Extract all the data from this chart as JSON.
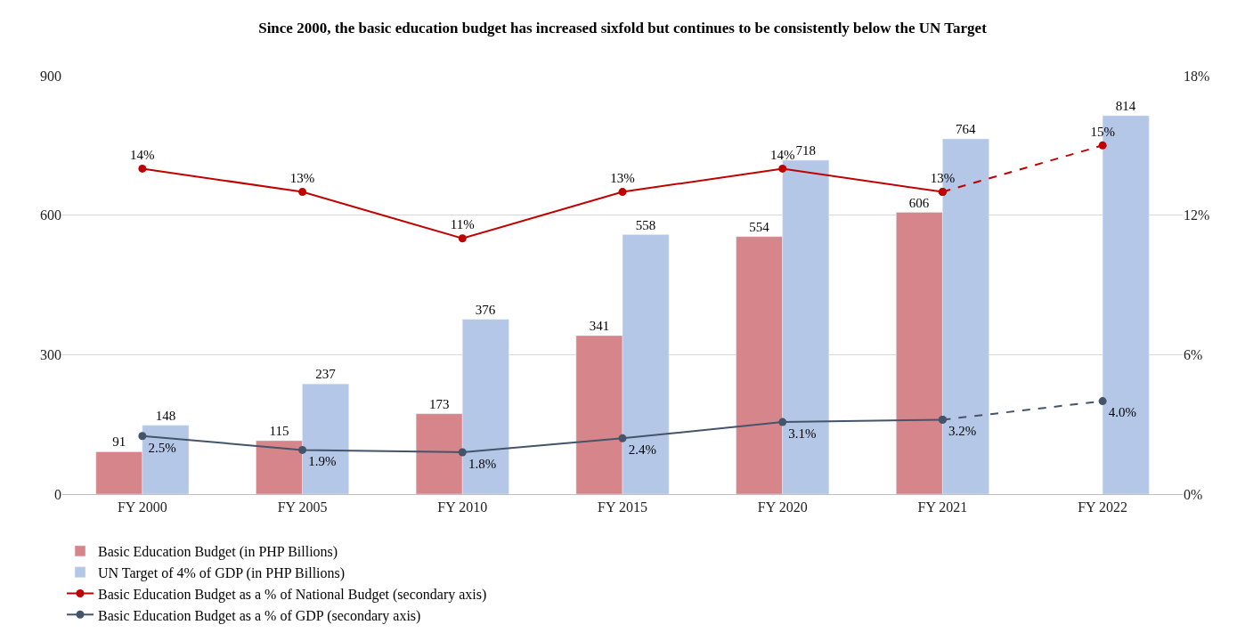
{
  "chart_data": {
    "type": "bar",
    "title": "Since 2000, the basic education budget has increased sixfold but continues to be consistently below the UN Target",
    "categories": [
      "FY 2000",
      "FY 2005",
      "FY 2010",
      "FY 2015",
      "FY 2020",
      "FY 2021",
      "FY 2022"
    ],
    "series": [
      {
        "name": "Basic Education Budget (in PHP Billions)",
        "color": "#d6868b",
        "values": [
          91,
          115,
          173,
          341,
          554,
          606,
          null
        ],
        "value_labels": [
          "91",
          "115",
          "173",
          "341",
          "554",
          "606",
          null
        ]
      },
      {
        "name": "UN Target of 4% of GDP (in PHP Billions)",
        "color": "#b4c7e7",
        "values": [
          148,
          237,
          376,
          558,
          718,
          764,
          814
        ],
        "value_labels": [
          "148",
          "237",
          "376",
          "558",
          "718",
          "764",
          "814"
        ]
      },
      {
        "name": "Basic Education Budget as a % of National Budget (secondary axis)",
        "type": "line",
        "axis": "y2",
        "color": "#c00000",
        "line_style": "solid",
        "marker": "circle",
        "values": [
          14,
          13,
          11,
          13,
          14,
          13,
          null
        ],
        "value_labels": [
          "14%",
          "13%",
          "11%",
          "13%",
          "14%",
          "13%",
          null
        ]
      },
      {
        "type": "line",
        "axis": "y2",
        "color": "#c00000",
        "line_style": "dashed",
        "marker": "circle",
        "values": [
          null,
          null,
          null,
          null,
          null,
          13,
          15
        ],
        "value_labels": [
          null,
          null,
          null,
          null,
          null,
          null,
          "15%"
        ]
      },
      {
        "name": "Basic Education Budget as a % of GDP (secondary axis)",
        "type": "line",
        "axis": "y2",
        "color": "#44546a",
        "line_style": "solid",
        "marker": "circle",
        "values": [
          2.5,
          1.9,
          1.8,
          2.4,
          3.1,
          3.2,
          null
        ],
        "value_labels": [
          "2.5%",
          "1.9%",
          "1.8%",
          "2.4%",
          "3.1%",
          "3.2%",
          null
        ]
      },
      {
        "type": "line",
        "axis": "y2",
        "color": "#44546a",
        "line_style": "dashed",
        "marker": "circle",
        "values": [
          null,
          null,
          null,
          null,
          null,
          3.2,
          4.0
        ],
        "value_labels": [
          null,
          null,
          null,
          null,
          null,
          null,
          "4.0%"
        ]
      }
    ],
    "ylim": [
      0,
      900
    ],
    "yticks": [
      0,
      300,
      600,
      900
    ],
    "y2lim": [
      0,
      18
    ],
    "y2ticks": [
      {
        "value": 0,
        "label": "0%"
      },
      {
        "value": 6,
        "label": "6%"
      },
      {
        "value": 12,
        "label": "12%"
      },
      {
        "value": 18,
        "label": "18%"
      }
    ],
    "grid": "y",
    "legend": "bottom"
  }
}
